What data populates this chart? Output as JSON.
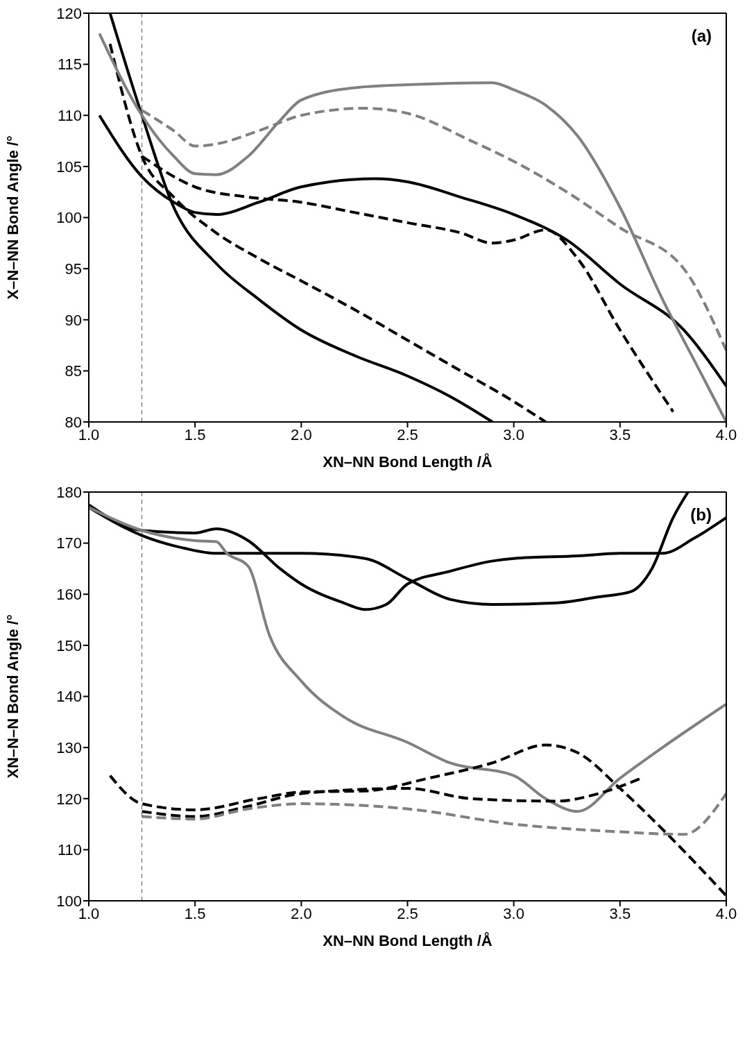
{
  "chart_data": [
    {
      "type": "line",
      "xlabel": "XN–NN Bond Length /Å",
      "ylabel": "X–N–NN Bond Angle /°",
      "annotations": [
        "(a)"
      ],
      "xlim": [
        1.0,
        4.0
      ],
      "ylim": [
        80,
        120
      ],
      "xticks": [
        {
          "value": 1,
          "label": "1.0"
        },
        {
          "value": 1.5,
          "label": "1.5"
        },
        {
          "value": 2,
          "label": "2.0"
        },
        {
          "value": 2.5,
          "label": "2.5"
        },
        {
          "value": 3,
          "label": "3.0"
        },
        {
          "value": 3.5,
          "label": "3.5"
        },
        {
          "value": 4,
          "label": "4.0"
        }
      ],
      "yticks": [
        80,
        85,
        90,
        95,
        100,
        105,
        110,
        115,
        120
      ],
      "grid": false,
      "legend": false,
      "marker": "none",
      "ref_lines": [
        {
          "axis": "x",
          "value": 1.25,
          "color": "#555555",
          "line_style": "dashed"
        }
      ],
      "series": [
        {
          "color": "#000000",
          "line_style": "solid",
          "x": [
            1.1,
            1.25,
            1.4,
            1.6,
            1.8,
            2.0,
            2.25,
            2.5,
            2.7,
            2.9
          ],
          "values": [
            120,
            110,
            101,
            95.5,
            92,
            89,
            86.5,
            84.5,
            82.5,
            80
          ]
        },
        {
          "color": "#000000",
          "line_style": "dashed",
          "x": [
            1.1,
            1.25,
            1.4,
            1.6,
            1.8,
            2.0,
            2.25,
            2.5,
            2.75,
            3.0,
            3.15
          ],
          "values": [
            117,
            106,
            102,
            98.5,
            96,
            93.8,
            91,
            88,
            85,
            82,
            80
          ]
        },
        {
          "color": "#000000",
          "line_style": "solid",
          "x": [
            1.05,
            1.25,
            1.4,
            1.5,
            1.6,
            1.8,
            2.0,
            2.35,
            2.5,
            2.75,
            3.0,
            3.25,
            3.5,
            3.8,
            4.0
          ],
          "values": [
            110,
            104,
            101.5,
            100.5,
            100.3,
            101.5,
            103,
            103.8,
            103.5,
            102,
            100.3,
            97.8,
            93.5,
            89,
            83.5
          ]
        },
        {
          "color": "#000000",
          "line_style": "dashed",
          "x": [
            1.25,
            1.5,
            1.75,
            2.0,
            2.25,
            2.5,
            2.75,
            2.9,
            3.0,
            3.15,
            3.3,
            3.5,
            3.75
          ],
          "values": [
            106,
            103,
            102,
            101.5,
            100.5,
            99.5,
            98.5,
            97.5,
            97.8,
            98.8,
            96,
            89,
            81
          ]
        },
        {
          "color": "#808080",
          "line_style": "solid",
          "x": [
            1.05,
            1.25,
            1.4,
            1.5,
            1.6,
            1.75,
            1.9,
            2.0,
            2.25,
            2.5,
            2.9,
            3.0,
            3.15,
            3.3,
            3.5,
            3.7,
            3.85,
            4.0
          ],
          "values": [
            118,
            110,
            106,
            104.3,
            104.2,
            106,
            109.5,
            111.5,
            112.7,
            113,
            113.2,
            112.5,
            111,
            108,
            101,
            92,
            86,
            80
          ]
        },
        {
          "color": "#808080",
          "line_style": "dashed",
          "x": [
            1.25,
            1.4,
            1.5,
            1.6,
            1.8,
            2.0,
            2.3,
            2.5,
            2.8,
            3.0,
            3.25,
            3.5,
            3.8,
            4.0
          ],
          "values": [
            110.5,
            108.5,
            107,
            107.2,
            108.5,
            110,
            110.7,
            110.2,
            107.5,
            105.5,
            102.5,
            99,
            95,
            87
          ]
        }
      ]
    },
    {
      "type": "line",
      "xlabel": "XN–NN Bond Length /Å",
      "ylabel": "XN–N–N Bond Angle /°",
      "annotations": [
        "(b)"
      ],
      "xlim": [
        1.0,
        4.0
      ],
      "ylim": [
        100,
        180
      ],
      "xticks": [
        {
          "value": 1,
          "label": "1.0"
        },
        {
          "value": 1.5,
          "label": "1.5"
        },
        {
          "value": 2,
          "label": "2.0"
        },
        {
          "value": 2.5,
          "label": "2.5"
        },
        {
          "value": 3,
          "label": "3.0"
        },
        {
          "value": 3.5,
          "label": "3.5"
        },
        {
          "value": 4,
          "label": "4.0"
        }
      ],
      "yticks": [
        100,
        110,
        120,
        130,
        140,
        150,
        160,
        170,
        180
      ],
      "grid": false,
      "legend": false,
      "marker": "none",
      "ref_lines": [
        {
          "axis": "x",
          "value": 1.25,
          "color": "#555555",
          "line_style": "dashed"
        }
      ],
      "series": [
        {
          "color": "#000000",
          "line_style": "solid",
          "x": [
            1.0,
            1.25,
            1.5,
            1.6,
            1.75,
            1.9,
            2.0,
            2.2,
            2.3,
            2.4,
            2.5,
            2.7,
            2.9,
            3.0,
            3.3,
            3.5,
            3.7,
            3.85,
            4.0
          ],
          "values": [
            177.5,
            172.5,
            172,
            172.8,
            170.5,
            165,
            162,
            158.3,
            157,
            158,
            162,
            164.5,
            166.5,
            167,
            167.5,
            168,
            168,
            171,
            175
          ]
        },
        {
          "color": "#000000",
          "line_style": "solid",
          "x": [
            1.0,
            1.25,
            1.45,
            1.6,
            2.0,
            2.3,
            2.5,
            2.7,
            2.9,
            3.2,
            3.4,
            3.55,
            3.65,
            3.75,
            3.82
          ],
          "values": [
            177,
            171.5,
            169,
            168,
            168,
            167,
            163,
            159,
            158,
            158.3,
            159.5,
            160.5,
            165,
            175,
            180
          ]
        },
        {
          "color": "#808080",
          "line_style": "solid",
          "x": [
            1.0,
            1.25,
            1.5,
            1.6,
            1.65,
            1.75,
            1.85,
            2.0,
            2.2,
            2.5,
            2.7,
            3.0,
            3.15,
            3.3,
            3.5,
            3.7,
            4.0
          ],
          "values": [
            177,
            172.5,
            170.5,
            170.3,
            168,
            165.5,
            152,
            143,
            136,
            131,
            127,
            124.5,
            120,
            117.5,
            124,
            130,
            138.5
          ]
        },
        {
          "color": "#000000",
          "line_style": "dashed",
          "x": [
            1.1,
            1.25,
            1.5,
            1.8,
            2.0,
            2.3,
            2.6,
            2.9,
            3.15,
            3.3,
            3.5,
            3.7,
            4.0
          ],
          "values": [
            124.5,
            119,
            117.8,
            120,
            121.3,
            121.5,
            124,
            127,
            130.5,
            129,
            122,
            114,
            101
          ]
        },
        {
          "color": "#000000",
          "line_style": "dashed",
          "x": [
            1.25,
            1.5,
            1.75,
            2.0,
            2.5,
            2.8,
            3.2,
            3.4,
            3.6
          ],
          "values": [
            117.5,
            116.5,
            118.5,
            121,
            122,
            120,
            119.5,
            121,
            124
          ]
        },
        {
          "color": "#808080",
          "line_style": "dashed",
          "x": [
            1.25,
            1.5,
            1.75,
            2.0,
            2.5,
            3.0,
            3.5,
            3.8,
            4.0
          ],
          "values": [
            116.5,
            116,
            118,
            119,
            118,
            115,
            113.5,
            113,
            121
          ]
        }
      ]
    }
  ]
}
